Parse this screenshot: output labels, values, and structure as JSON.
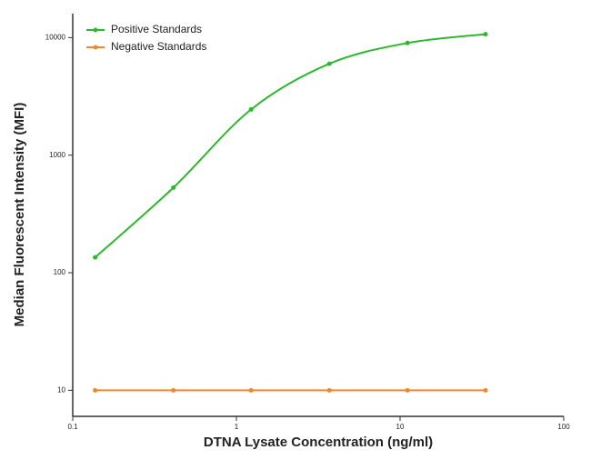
{
  "chart_data": {
    "type": "line",
    "x_label": "DTNA Lysate Concentration (ng/ml)",
    "y_label": "Median Fluorescent Intensity (MFI)",
    "x": [
      0.137,
      0.412,
      1.23,
      3.7,
      11.1,
      33.3
    ],
    "series": [
      {
        "name": "Positive Standards",
        "color": "#2eb82e",
        "values": [
          135,
          530,
          2450,
          6000,
          9000,
          10700
        ]
      },
      {
        "name": "Negative Standards",
        "color": "#f0892a",
        "values": [
          10,
          10,
          10,
          10,
          10,
          10
        ]
      }
    ],
    "xlim": [
      0.1,
      100
    ],
    "xticks": [
      0.1,
      1,
      10,
      100
    ],
    "ylim": [
      6,
      16000
    ],
    "yticks": [
      10,
      100,
      1000,
      10000
    ],
    "log_x": true,
    "log_y": true,
    "smooth": true,
    "legend": "top-left"
  }
}
